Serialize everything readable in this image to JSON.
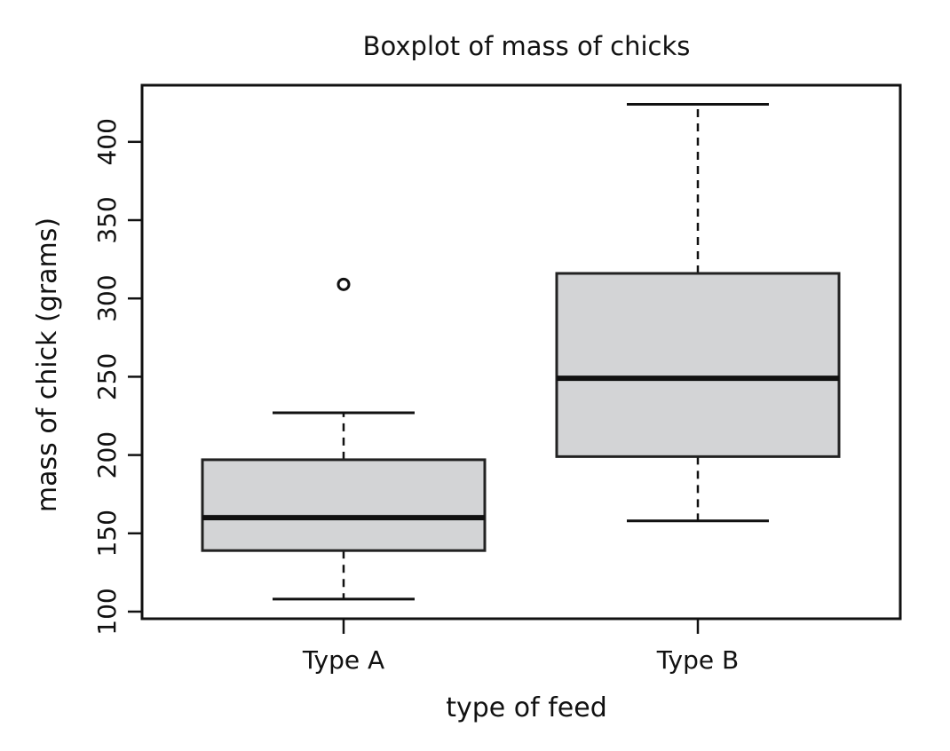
{
  "chart_data": {
    "type": "boxplot",
    "title": "Boxplot of mass of chicks",
    "xlabel": "type of feed",
    "ylabel": "mass of chick (grams)",
    "ylim": [
      95,
      435
    ],
    "yticks": [
      100,
      150,
      200,
      250,
      300,
      350,
      400
    ],
    "categories": [
      "Type A",
      "Type B"
    ],
    "boxes": [
      {
        "name": "Type A",
        "whisker_low": 108,
        "q1": 139,
        "median": 160,
        "q3": 197,
        "whisker_high": 227,
        "outliers": [
          309
        ]
      },
      {
        "name": "Type B",
        "whisker_low": 158,
        "q1": 199,
        "median": 249,
        "q3": 316,
        "whisker_high": 424,
        "outliers": []
      }
    ],
    "box_fill": "#d3d4d6",
    "grid": false,
    "legend": "none"
  }
}
